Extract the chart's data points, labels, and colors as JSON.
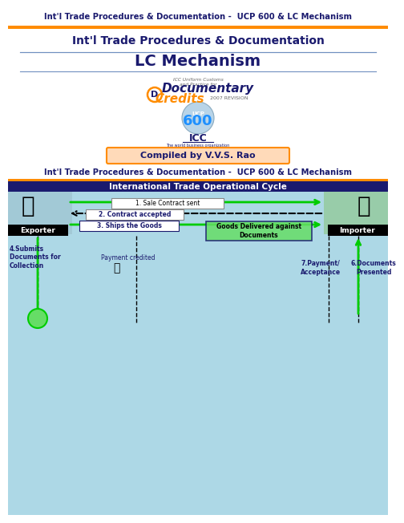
{
  "title_bar_text": "Int'l Trade Procedures & Documentation -  UCP 600 & LC Mechanism",
  "title_bar_bg": "#FF8C00",
  "title_bar_fg": "#1a1a6e",
  "slide_title": "Int'l Trade Procedures & Documentation",
  "slide_subtitle": "LC Mechanism",
  "compiled_text": "Compiled by V.V.S. Rao",
  "compiled_bg": "#FFDAB9",
  "compiled_border": "#FF8C00",
  "section_title": "Int'l Trade Procedures & Documentation -  UCP 600 & LC Mechanism",
  "section_title_color": "#1a1a6e",
  "diagram_title": "International Trade Operational Cycle",
  "diagram_title_bg": "#1a1a6e",
  "diagram_title_fg": "#FFFFFF",
  "diagram_bg": "#ADD8E6",
  "bg_color": "#FFFFFF",
  "orange_line_color": "#FF8C00",
  "blue_line_color": "#7090C0",
  "green_arrow_color": "#00CC00",
  "black_color": "#000000",
  "dark_blue": "#1a1a6e",
  "label1": "1. Sale Contract sent",
  "label2": "2. Contract accepted",
  "label3": "3. Ships the Goods",
  "label4": "Goods Delivered against\nDocuments",
  "label5": "4.Submits\nDocuments for\nCollection",
  "label6": "Payment credited",
  "label7": "7.Payment/\nAcceptance",
  "label8": "6.Documents\nPresented",
  "exporter_label": "Exporter",
  "importer_label": "Importer",
  "icc_small": "ICC Uniform Customs\nand Practice for",
  "documentary": "Documentary",
  "credits": "Credits",
  "revision": "2007 REVISION",
  "ucp_text": "UCP",
  "ucp_num": "600",
  "icc_big": "ICC",
  "icc_sub": "The world business organization"
}
